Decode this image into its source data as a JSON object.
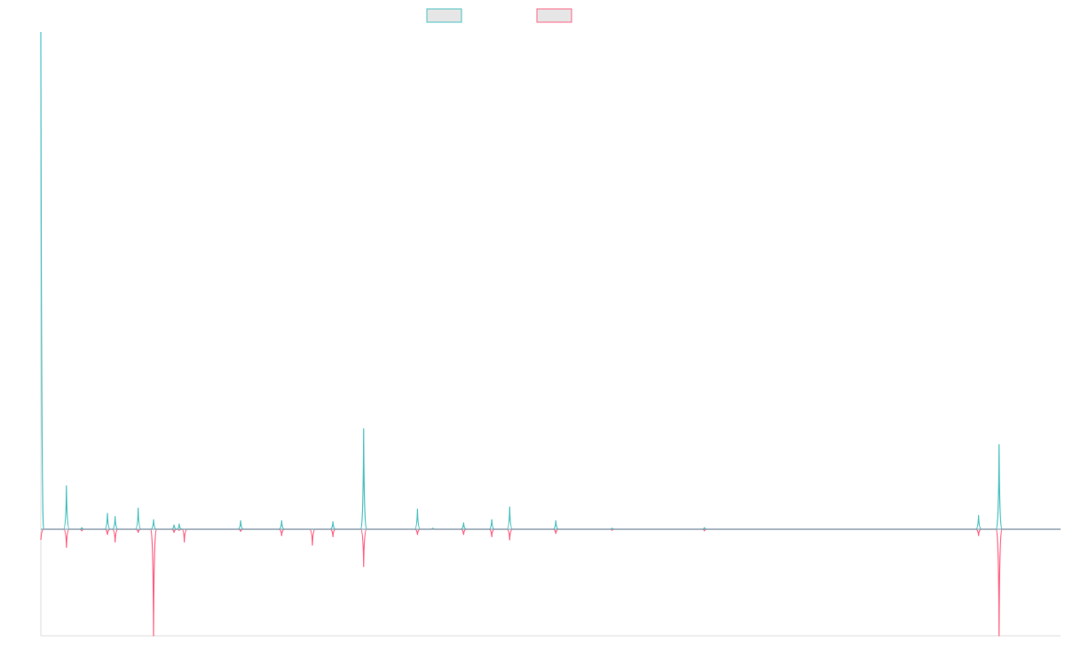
{
  "colors": {
    "series_a": "#4bc0c0",
    "series_b": "#ff6384",
    "legend_fill": "#e6e6e6",
    "axis": "#dddddd",
    "zero_line": "#8aa8b8"
  },
  "chart_data": {
    "type": "line",
    "title": "",
    "xlabel": "",
    "ylabel": "",
    "grid": false,
    "legend_position": "top",
    "x_count": 200,
    "ylim": [
      -100,
      470
    ],
    "series": [
      {
        "color": "#4bc0c0",
        "fill": false,
        "spikes": [
          {
            "x": 0,
            "y": 470
          },
          {
            "x": 5,
            "y": 41
          },
          {
            "x": 8,
            "y": 1.5
          },
          {
            "x": 13,
            "y": 15
          },
          {
            "x": 14.5,
            "y": 12
          },
          {
            "x": 19,
            "y": 20
          },
          {
            "x": 22,
            "y": 9
          },
          {
            "x": 26,
            "y": 4
          },
          {
            "x": 27,
            "y": 5
          },
          {
            "x": 39,
            "y": 8
          },
          {
            "x": 47,
            "y": 8
          },
          {
            "x": 57,
            "y": 7
          },
          {
            "x": 63,
            "y": 95
          },
          {
            "x": 73.5,
            "y": 19
          },
          {
            "x": 76.5,
            "y": 1
          },
          {
            "x": 82.5,
            "y": 6
          },
          {
            "x": 88,
            "y": 9
          },
          {
            "x": 91.5,
            "y": 21
          },
          {
            "x": 100.5,
            "y": 8
          },
          {
            "x": 111.5,
            "y": 1
          },
          {
            "x": 129.5,
            "y": 1.5
          },
          {
            "x": 183,
            "y": 13
          },
          {
            "x": 187,
            "y": 80
          }
        ]
      },
      {
        "color": "#ff6384",
        "fill": false,
        "spikes": [
          {
            "x": 0,
            "y": -10
          },
          {
            "x": 5,
            "y": -17
          },
          {
            "x": 8,
            "y": -1.5
          },
          {
            "x": 13,
            "y": -5
          },
          {
            "x": 14.5,
            "y": -12
          },
          {
            "x": 19,
            "y": -3
          },
          {
            "x": 22,
            "y": -100
          },
          {
            "x": 26,
            "y": -3
          },
          {
            "x": 27,
            "y": -1
          },
          {
            "x": 28,
            "y": -12
          },
          {
            "x": 39,
            "y": -2
          },
          {
            "x": 47,
            "y": -6
          },
          {
            "x": 53,
            "y": -15
          },
          {
            "x": 57,
            "y": -7
          },
          {
            "x": 63,
            "y": -35
          },
          {
            "x": 73.5,
            "y": -5
          },
          {
            "x": 82.5,
            "y": -5
          },
          {
            "x": 88,
            "y": -7
          },
          {
            "x": 91.5,
            "y": -10
          },
          {
            "x": 100.5,
            "y": -4
          },
          {
            "x": 111.5,
            "y": -1
          },
          {
            "x": 129.5,
            "y": -1.5
          },
          {
            "x": 183,
            "y": -6
          },
          {
            "x": 187,
            "y": -100
          }
        ]
      }
    ]
  }
}
